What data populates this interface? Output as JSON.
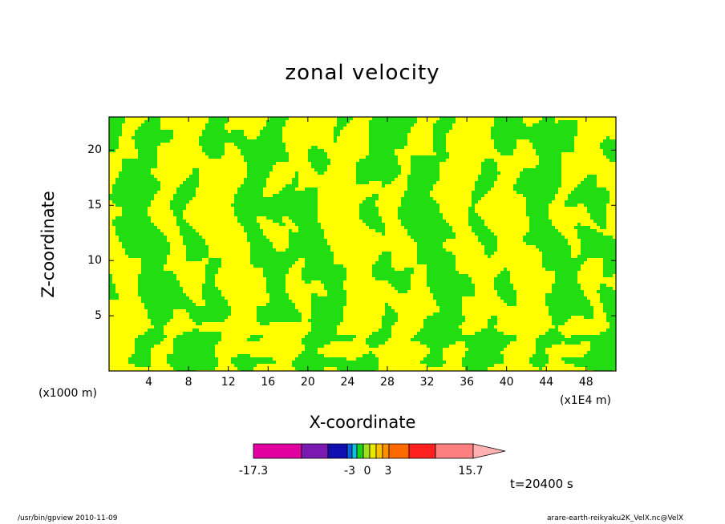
{
  "chart_data": {
    "type": "heatmap",
    "title": "zonal velocity",
    "xlabel": "X-coordinate",
    "ylabel": "Z-coordinate",
    "x_unit_left": "(x1000 m)",
    "x_unit_right": "(x1E4 m)",
    "xlim": [
      0,
      51
    ],
    "ylim": [
      0,
      23
    ],
    "x_ticks": [
      4,
      8,
      12,
      16,
      20,
      24,
      28,
      32,
      36,
      40,
      44,
      48
    ],
    "y_ticks": [
      5,
      10,
      15,
      20
    ],
    "visible_levels": [
      {
        "range": "below 0",
        "color": "#22dd11"
      },
      {
        "range": "above 0",
        "color": "#ffff00"
      }
    ],
    "colorbar": {
      "min_label": "-17.3",
      "labels": [
        "-17.3",
        "-3",
        "0",
        "3",
        "15.7"
      ],
      "segment_colors": [
        "#e000a0",
        "#7a1ab0",
        "#1010b0",
        "#1060e0",
        "#10c0e0",
        "#20d020",
        "#a0e020",
        "#e8e800",
        "#ffc000",
        "#ff9000",
        "#ff6a00",
        "#ff2020",
        "#ff8080",
        "#ffb0b0"
      ],
      "extends_max": true
    },
    "annotation": "t=20400 s",
    "grid": false
  },
  "footer": {
    "left": "/usr/bin/gpview   2010-11-09",
    "right": "arare-earth-reikyaku2K_VelX.nc@VelX"
  }
}
